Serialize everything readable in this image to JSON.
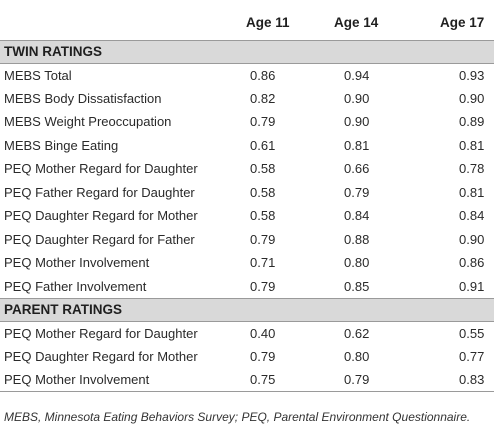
{
  "columns": [
    "",
    "Age 11",
    "Age 14",
    "Age 17"
  ],
  "sections": [
    {
      "title": "TWIN RATINGS",
      "rows": [
        {
          "label": "MEBS Total",
          "age11": "0.86",
          "age14": "0.94",
          "age17": "0.93"
        },
        {
          "label": "MEBS Body Dissatisfaction",
          "age11": "0.82",
          "age14": "0.90",
          "age17": "0.90"
        },
        {
          "label": "MEBS Weight Preoccupation",
          "age11": "0.79",
          "age14": "0.90",
          "age17": "0.89"
        },
        {
          "label": "MEBS Binge Eating",
          "age11": "0.61",
          "age14": "0.81",
          "age17": "0.81"
        },
        {
          "label": "PEQ Mother Regard for Daughter",
          "age11": "0.58",
          "age14": "0.66",
          "age17": "0.78"
        },
        {
          "label": "PEQ Father Regard for Daughter",
          "age11": "0.58",
          "age14": "0.79",
          "age17": "0.81"
        },
        {
          "label": "PEQ Daughter Regard for Mother",
          "age11": "0.58",
          "age14": "0.84",
          "age17": "0.84"
        },
        {
          "label": "PEQ Daughter Regard for Father",
          "age11": "0.79",
          "age14": "0.88",
          "age17": "0.90"
        },
        {
          "label": "PEQ Mother Involvement",
          "age11": "0.71",
          "age14": "0.80",
          "age17": "0.86"
        },
        {
          "label": "PEQ Father Involvement",
          "age11": "0.79",
          "age14": "0.85",
          "age17": "0.91"
        }
      ]
    },
    {
      "title": "PARENT RATINGS",
      "rows": [
        {
          "label": "PEQ Mother Regard for Daughter",
          "age11": "0.40",
          "age14": "0.62",
          "age17": "0.55"
        },
        {
          "label": "PEQ Daughter Regard for Mother",
          "age11": "0.79",
          "age14": "0.80",
          "age17": "0.77"
        },
        {
          "label": "PEQ Mother Involvement",
          "age11": "0.75",
          "age14": "0.79",
          "age17": "0.83"
        }
      ]
    }
  ],
  "footnote": "MEBS, Minnesota Eating Behaviors Survey; PEQ, Parental Environment Questionnaire."
}
